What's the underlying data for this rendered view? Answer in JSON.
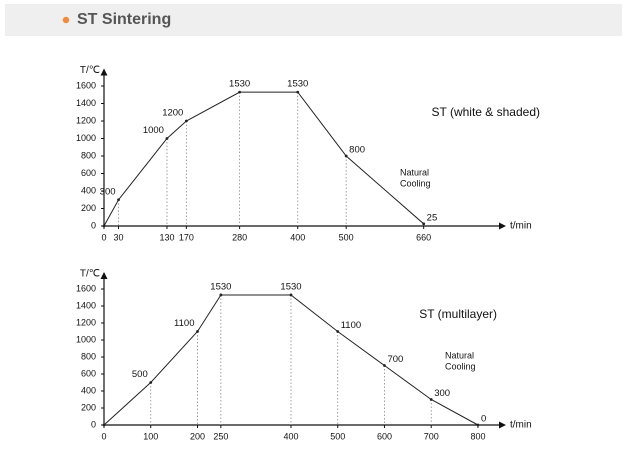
{
  "header": {
    "title": "ST Sintering"
  },
  "chart_data": [
    {
      "type": "line",
      "x_label": "t/min",
      "y_label": "T/℃",
      "x": [
        0,
        30,
        130,
        170,
        280,
        400,
        500,
        660
      ],
      "series": [
        {
          "name": "ST (white & shaded)",
          "color": "#222222",
          "values": [
            0,
            300,
            1000,
            1200,
            1530,
            1530,
            800,
            25
          ]
        }
      ],
      "annotation": [
        "Natural",
        "Cooling"
      ],
      "xlim": [
        0,
        830
      ],
      "ylim": [
        0,
        1800
      ],
      "xticks": [
        0,
        30,
        130,
        170,
        280,
        400,
        500,
        660
      ],
      "yticks": [
        0,
        200,
        400,
        600,
        800,
        1000,
        1200,
        1400,
        1600
      ]
    },
    {
      "type": "line",
      "x_label": "t/min",
      "y_label": "T/℃",
      "x": [
        0,
        100,
        200,
        250,
        400,
        500,
        600,
        700,
        800
      ],
      "series": [
        {
          "name": "ST (multilayer)",
          "color": "#222222",
          "values": [
            0,
            500,
            1100,
            1530,
            1530,
            1100,
            700,
            300,
            0
          ]
        }
      ],
      "annotation": [
        "Natural",
        "Cooling"
      ],
      "xlim": [
        0,
        860
      ],
      "ylim": [
        0,
        1800
      ],
      "xticks": [
        0,
        100,
        200,
        250,
        400,
        500,
        600,
        700,
        800
      ],
      "yticks": [
        0,
        200,
        400,
        600,
        800,
        1000,
        1200,
        1400,
        1600
      ]
    }
  ]
}
